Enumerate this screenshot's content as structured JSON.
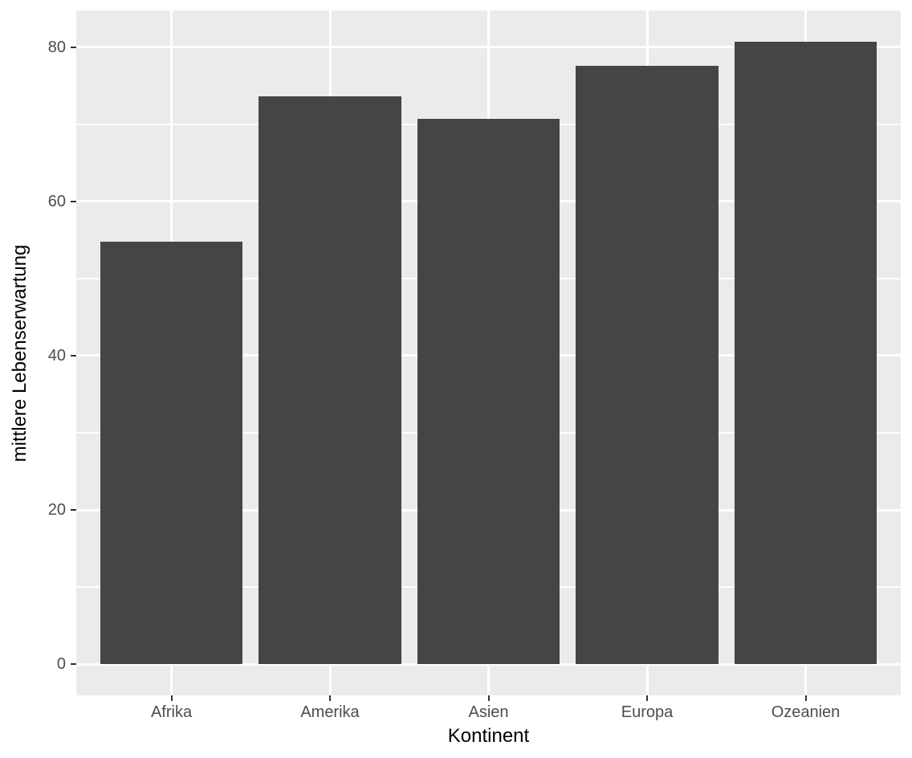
{
  "chart_data": {
    "type": "bar",
    "title": "",
    "xlabel": "Kontinent",
    "ylabel": "mittlere Lebenserwartung",
    "categories": [
      "Afrika",
      "Amerika",
      "Asien",
      "Europa",
      "Ozeanien"
    ],
    "values": [
      54.8,
      73.6,
      70.7,
      77.6,
      80.7
    ],
    "y_ticks": [
      0,
      20,
      40,
      60,
      80
    ],
    "y_minor_ticks": [
      10,
      30,
      50,
      70
    ],
    "ylim": [
      -4.04,
      84.76
    ],
    "bar_rel_width": 0.9,
    "band_expand": 0.6,
    "grid": "on",
    "legend": "none",
    "colors": {
      "bar_fill": "#454545",
      "panel_bg": "#EBEBEB",
      "gridline": "#FFFFFF",
      "tick_label": "#4D4D4D",
      "axis_title": "#000000",
      "tick_mark": "#333333",
      "background": "#FFFFFF"
    }
  }
}
